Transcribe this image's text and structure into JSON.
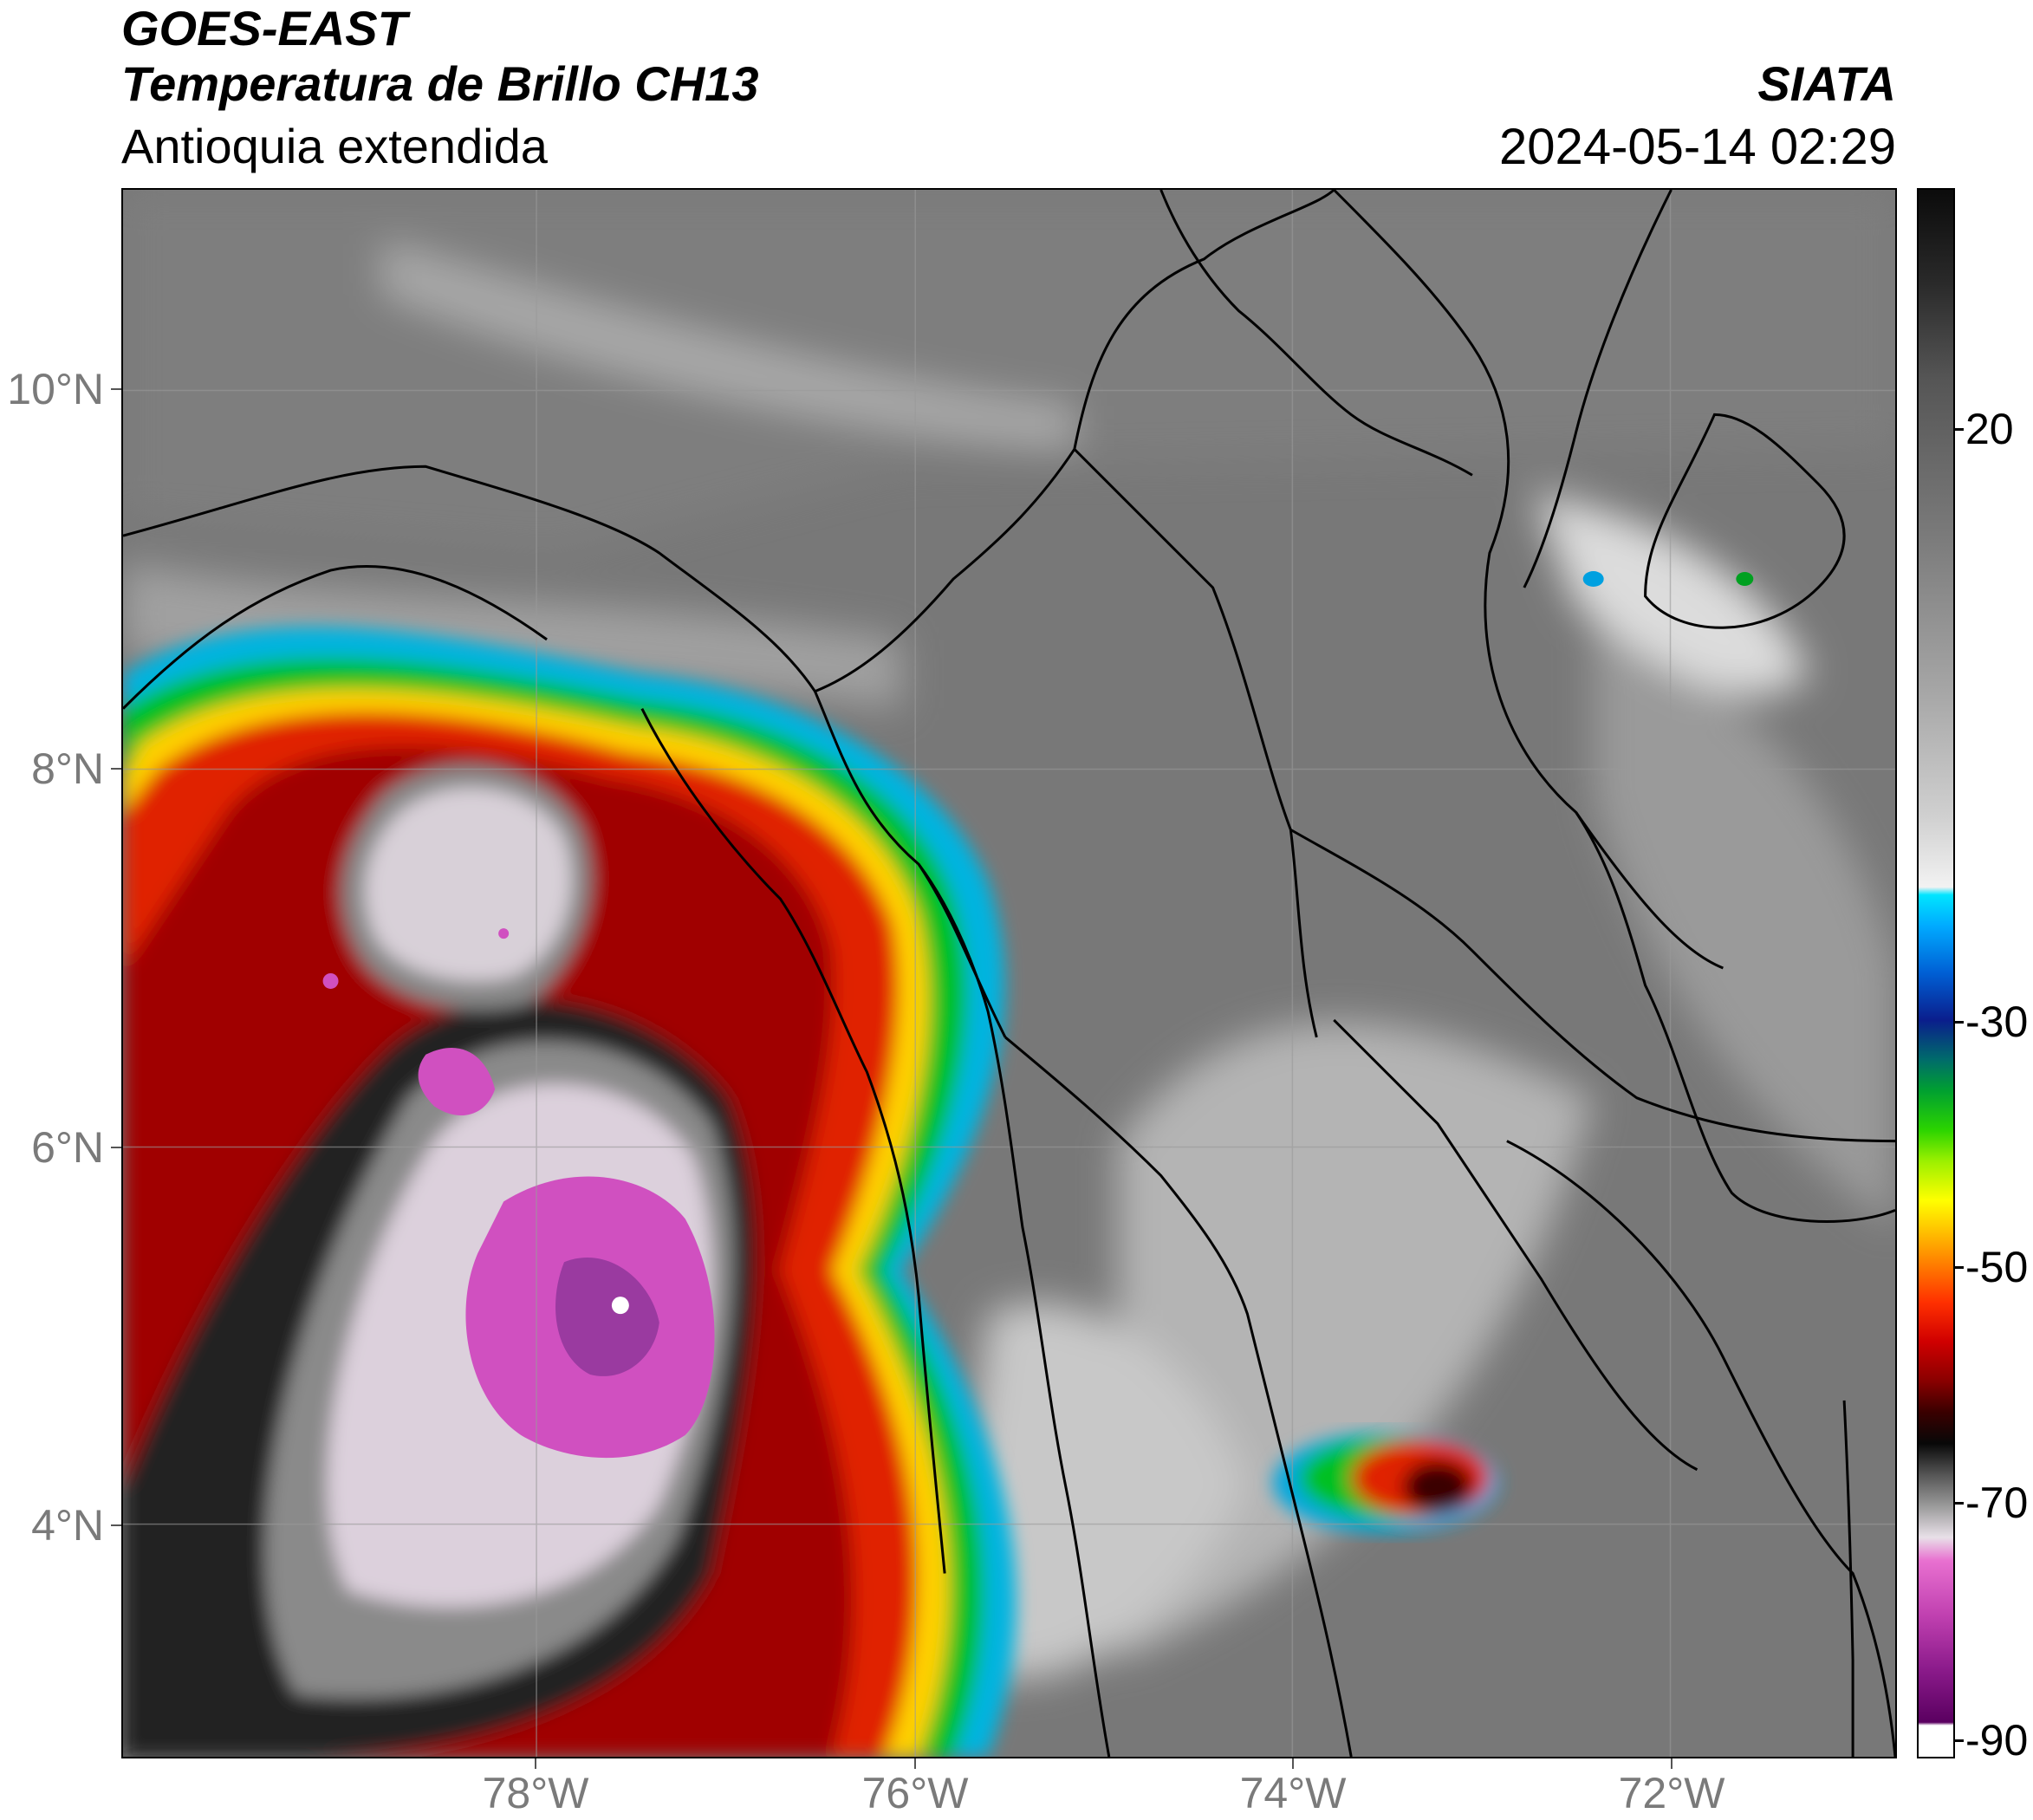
{
  "header": {
    "satellite": "GOES-EAST",
    "product": "Temperatura de Brillo CH13",
    "region": "Antioquia extendida",
    "agency": "SIATA",
    "datetime": "2024-05-14 02:29"
  },
  "map": {
    "lat_labels": [
      "10°N",
      "8°N",
      "6°N",
      "4°N"
    ],
    "lon_labels": [
      "78°W",
      "76°W",
      "74°W",
      "72°W"
    ]
  },
  "colorbar": {
    "tick_labels": [
      "20",
      "-30",
      "-50",
      "-70",
      "-90"
    ],
    "colors": {
      "cold_tops": "#d050c0",
      "deep_convection": "#c00000",
      "anvil": "#00c020",
      "clear": "#767676"
    }
  }
}
